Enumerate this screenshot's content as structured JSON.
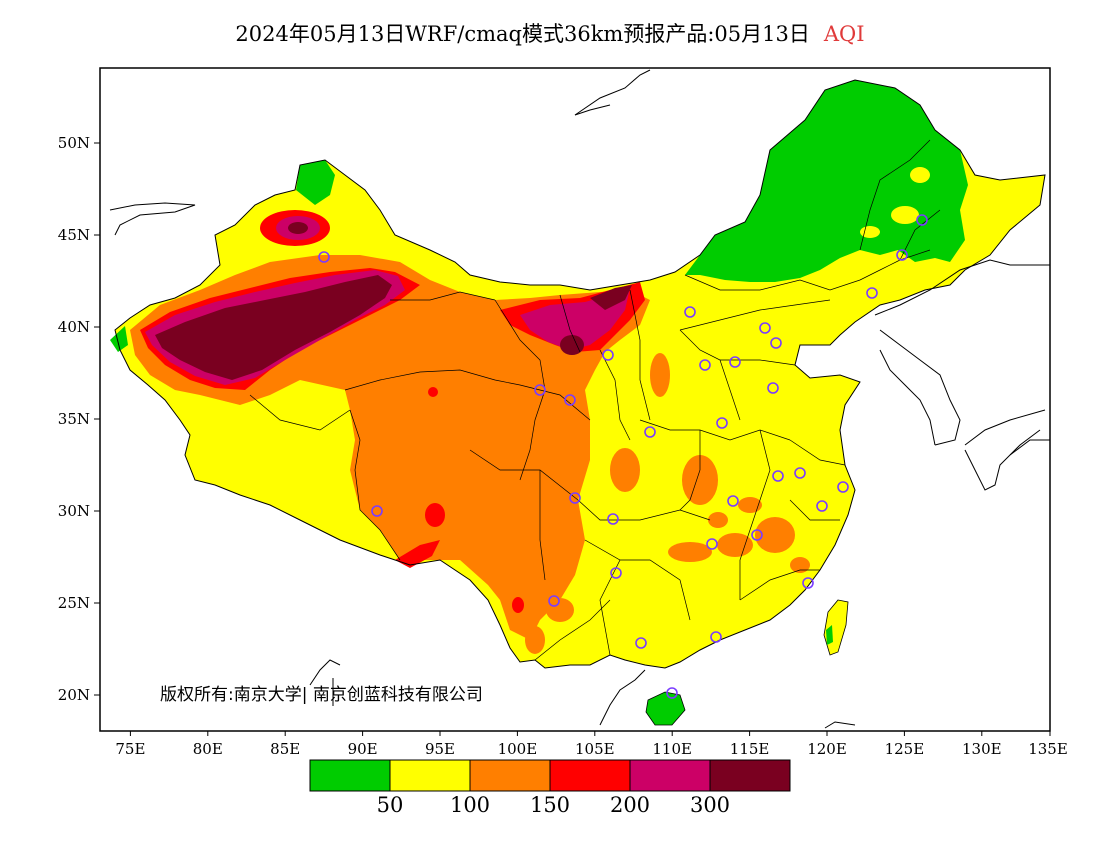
{
  "title": {
    "text": "2024年05月13日WRF/cmaq模式36km预报产品:05月13日",
    "variable": "AQI"
  },
  "copyright": "版权所有:南京大学| 南京创蓝科技有限公司",
  "axes": {
    "x_ticks": [
      "75E",
      "80E",
      "85E",
      "90E",
      "95E",
      "100E",
      "105E",
      "110E",
      "115E",
      "120E",
      "125E",
      "130E",
      "135E"
    ],
    "y_ticks": [
      "50N",
      "45N",
      "40N",
      "35N",
      "30N",
      "25N",
      "20N"
    ]
  },
  "legend": {
    "bins": [
      {
        "color": "#00cc00",
        "label": "50"
      },
      {
        "color": "#ffff00",
        "label": "100"
      },
      {
        "color": "#ff7f00",
        "label": "150"
      },
      {
        "color": "#ff0000",
        "label": "200"
      },
      {
        "color": "#cc0066",
        "label": "300"
      },
      {
        "color": "#7a0020",
        "label": ""
      }
    ]
  },
  "colors": {
    "good": "#00cc00",
    "moderate": "#ffff00",
    "unhealthy_sensitive": "#ff7f00",
    "unhealthy": "#ff0000",
    "very_unhealthy": "#cc0066",
    "hazardous": "#7a0020",
    "station_marker": "#7a3cff",
    "title_accent": "#e03a3a"
  }
}
